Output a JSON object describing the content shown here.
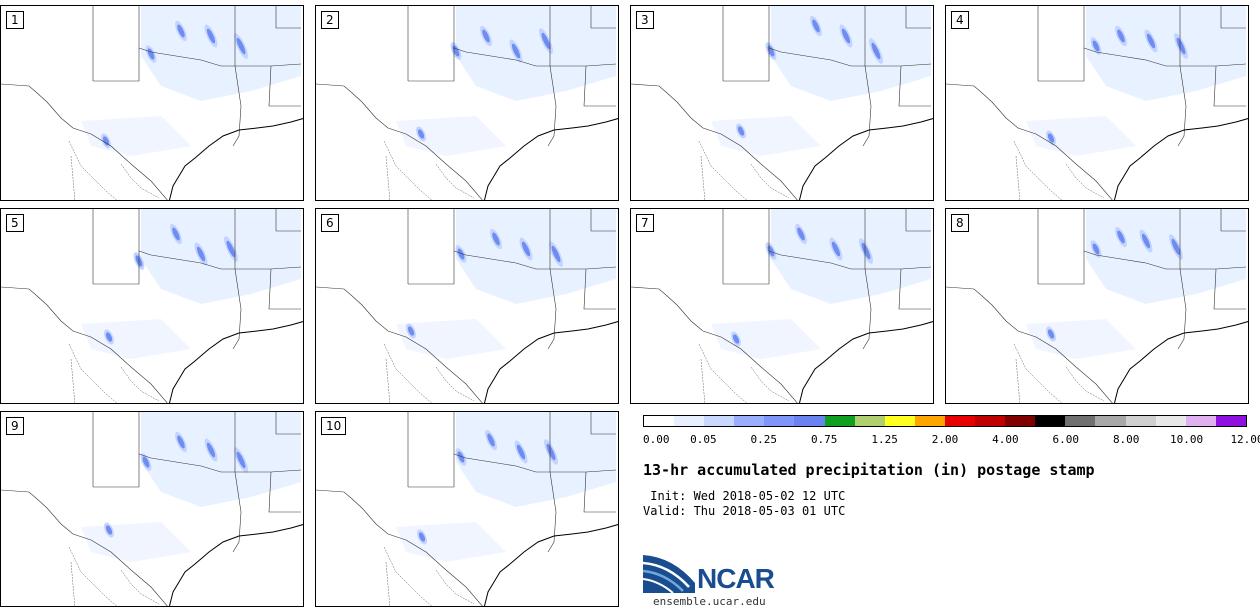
{
  "panels": [
    {
      "label": "1"
    },
    {
      "label": "2"
    },
    {
      "label": "3"
    },
    {
      "label": "4"
    },
    {
      "label": "5"
    },
    {
      "label": "6"
    },
    {
      "label": "7"
    },
    {
      "label": "8"
    },
    {
      "label": "9"
    },
    {
      "label": "10"
    }
  ],
  "colorbar": {
    "colors": [
      "#ffffff",
      "#e8f0ff",
      "#c8d8ff",
      "#9aaeff",
      "#7e96fa",
      "#6a82f2",
      "#10a020",
      "#b0d070",
      "#ffff20",
      "#ffa500",
      "#e80000",
      "#c00000",
      "#800000",
      "#000000",
      "#707070",
      "#a8a8a8",
      "#d0d0d0",
      "#e8e8e8",
      "#e0b0f0",
      "#9010e0"
    ],
    "ticks": [
      "0.00",
      "0.05",
      "0.25",
      "0.75",
      "1.25",
      "2.00",
      "4.00",
      "6.00",
      "8.00",
      "10.00",
      "12.00"
    ]
  },
  "title": "13-hr accumulated precipitation (in) postage stamp",
  "init": " Init: Wed 2018-05-02 12 UTC",
  "valid": "Valid: Thu 2018-05-03 01 UTC",
  "logo": {
    "text": "NCAR",
    "url": "ensemble.ucar.edu",
    "color": "#1a4d8f"
  }
}
